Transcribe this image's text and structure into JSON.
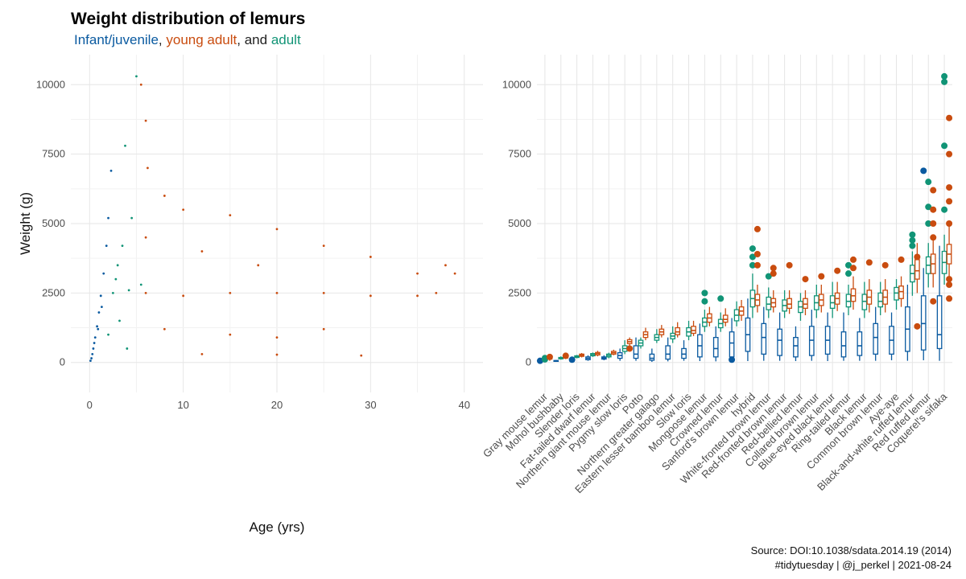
{
  "title": "Weight distribution of lemurs",
  "subtitle": {
    "part1": "Infant/juvenile",
    "sep1": ", ",
    "part2": "young adult",
    "sep2": ", and ",
    "part3": "adult"
  },
  "caption": {
    "line1": "Source: DOI:10.1038/sdata.2014.19 (2014)",
    "line2": "#tidytuesday | @j_perkel | 2021-08-24"
  },
  "colors": {
    "infant": "#0a5aa0",
    "young_adult": "#c94c0f",
    "adult": "#119476",
    "grid": "#e6e6e6"
  },
  "chart_data": [
    {
      "type": "scatter",
      "xlabel": "Age (yrs)",
      "ylabel": "Weight (g)",
      "xlim": [
        -2,
        42
      ],
      "ylim": [
        -500,
        10500
      ],
      "x_ticks": [
        0,
        10,
        20,
        30,
        40
      ],
      "y_ticks": [
        0,
        2500,
        5000,
        7500,
        10000
      ],
      "grid": true,
      "series": [
        {
          "name": "Infant/juvenile",
          "color_key": "infant",
          "points": [
            [
              0.1,
              60
            ],
            [
              0.2,
              150
            ],
            [
              0.3,
              300
            ],
            [
              0.4,
              500
            ],
            [
              0.5,
              700
            ],
            [
              0.6,
              900
            ],
            [
              0.8,
              1300
            ],
            [
              1,
              1800
            ],
            [
              1.2,
              2400
            ],
            [
              1.5,
              3200
            ],
            [
              1.8,
              4200
            ],
            [
              2,
              5200
            ],
            [
              2.3,
              6900
            ],
            [
              1.3,
              2000
            ],
            [
              0.9,
              1200
            ]
          ]
        },
        {
          "name": "adult",
          "color_key": "adult",
          "points": [
            [
              2,
              1000
            ],
            [
              2.5,
              2500
            ],
            [
              3,
              3500
            ],
            [
              3.5,
              4200
            ],
            [
              3.8,
              7800
            ],
            [
              4.5,
              5200
            ],
            [
              5,
              10300
            ],
            [
              4,
              500
            ],
            [
              2.8,
              3000
            ],
            [
              3.2,
              1500
            ],
            [
              4.2,
              2600
            ],
            [
              5.5,
              2800
            ]
          ]
        },
        {
          "name": "young adult",
          "color_key": "young_adult",
          "points": [
            [
              5.5,
              10000
            ],
            [
              6,
              8700
            ],
            [
              6.2,
              7000
            ],
            [
              8,
              6000
            ],
            [
              10,
              5500
            ],
            [
              15,
              5300
            ],
            [
              20,
              4800
            ],
            [
              25,
              4200
            ],
            [
              30,
              3800
            ],
            [
              35,
              3200
            ],
            [
              39,
              3200
            ],
            [
              38,
              3500
            ],
            [
              6,
              2500
            ],
            [
              10,
              2400
            ],
            [
              15,
              2500
            ],
            [
              20,
              2500
            ],
            [
              25,
              2500
            ],
            [
              30,
              2400
            ],
            [
              35,
              2400
            ],
            [
              37,
              2500
            ],
            [
              8,
              1200
            ],
            [
              15,
              1000
            ],
            [
              20,
              900
            ],
            [
              25,
              1200
            ],
            [
              29,
              250
            ],
            [
              12,
              300
            ],
            [
              20,
              280
            ],
            [
              6,
              4500
            ],
            [
              12,
              4000
            ],
            [
              18,
              3500
            ]
          ]
        }
      ]
    },
    {
      "type": "box",
      "ylim": [
        -500,
        10500
      ],
      "y_ticks": [
        0,
        2500,
        5000,
        7500,
        10000
      ],
      "grid": true,
      "group_order": [
        "infant",
        "adult",
        "young_adult"
      ],
      "categories": [
        "Gray mouse lemur",
        "Mohol bushbaby",
        "Slender loris",
        "Fat-tailed dwarf lemur",
        "Northern giant mouse lemur",
        "Pygmy slow loris",
        "Potto",
        "Northern greater galago",
        "Eastern lesser bamboo lemur",
        "Slow loris",
        "Mongoose lemur",
        "Crowned lemur",
        "Sanford's brown lemur",
        "hybrid",
        "White-fronted brown lemur",
        "Red-fronted brown lemur",
        "Red-bellied lemur",
        "Collared brown lemur",
        "Blue-eyed black lemur",
        "Ring-tailed lemur",
        "Black lemur",
        "Common brown lemur",
        "Aye-aye",
        "Black-and-white ruffed lemur",
        "Red ruffed lemur",
        "Coquerel's sifaka"
      ],
      "values": {
        "infant": [
          [
            10,
            40,
            60,
            80,
            120
          ],
          [
            20,
            40,
            60,
            70,
            90
          ],
          [
            30,
            50,
            80,
            100,
            130
          ],
          [
            60,
            100,
            150,
            200,
            260
          ],
          [
            80,
            120,
            160,
            200,
            260
          ],
          [
            60,
            150,
            250,
            350,
            500
          ],
          [
            60,
            150,
            300,
            600,
            900
          ],
          [
            20,
            80,
            150,
            300,
            500
          ],
          [
            40,
            120,
            300,
            600,
            900
          ],
          [
            60,
            150,
            300,
            500,
            800
          ],
          [
            50,
            200,
            600,
            1000,
            1400
          ],
          [
            40,
            200,
            500,
            900,
            1300
          ],
          [
            60,
            200,
            700,
            1100,
            1600
          ],
          [
            50,
            400,
            1000,
            1600,
            2300
          ],
          [
            60,
            300,
            900,
            1400,
            2000
          ],
          [
            60,
            250,
            800,
            1200,
            1800
          ],
          [
            50,
            200,
            600,
            900,
            1300
          ],
          [
            60,
            250,
            800,
            1300,
            1900
          ],
          [
            50,
            300,
            800,
            1300,
            1800
          ],
          [
            60,
            200,
            600,
            1100,
            1800
          ],
          [
            60,
            250,
            600,
            1100,
            1600
          ],
          [
            60,
            300,
            900,
            1400,
            2000
          ],
          [
            80,
            300,
            800,
            1300,
            1800
          ],
          [
            60,
            400,
            1200,
            2000,
            2800
          ],
          [
            80,
            450,
            1400,
            2400,
            3400
          ],
          [
            60,
            500,
            1000,
            2400,
            4200
          ]
        ],
        "adult": [
          [
            60,
            100,
            120,
            150,
            180
          ],
          [
            100,
            130,
            150,
            180,
            220
          ],
          [
            150,
            180,
            210,
            240,
            270
          ],
          [
            200,
            240,
            280,
            320,
            360
          ],
          [
            150,
            200,
            250,
            300,
            350
          ],
          [
            300,
            400,
            500,
            600,
            800
          ],
          [
            500,
            600,
            700,
            800,
            900
          ],
          [
            700,
            800,
            900,
            1000,
            1200
          ],
          [
            700,
            850,
            950,
            1050,
            1300
          ],
          [
            800,
            950,
            1100,
            1250,
            1500
          ],
          [
            1100,
            1300,
            1450,
            1600,
            1900
          ],
          [
            1100,
            1250,
            1400,
            1550,
            1800
          ],
          [
            1300,
            1500,
            1700,
            1900,
            2200
          ],
          [
            1600,
            2000,
            2300,
            2600,
            3200
          ],
          [
            1600,
            1900,
            2100,
            2350,
            2700
          ],
          [
            1600,
            1850,
            2050,
            2250,
            2600
          ],
          [
            1500,
            1800,
            2000,
            2200,
            2500
          ],
          [
            1600,
            1900,
            2150,
            2400,
            2800
          ],
          [
            1600,
            1950,
            2150,
            2400,
            2900
          ],
          [
            1700,
            2000,
            2200,
            2450,
            2800
          ],
          [
            1600,
            1900,
            2200,
            2450,
            2900
          ],
          [
            1700,
            2000,
            2200,
            2500,
            2900
          ],
          [
            1900,
            2250,
            2500,
            2700,
            3000
          ],
          [
            2400,
            2900,
            3200,
            3500,
            4000
          ],
          [
            2700,
            3200,
            3500,
            3800,
            4300
          ],
          [
            2800,
            3200,
            3600,
            4000,
            4600
          ]
        ],
        "young_adult": [
          [
            60,
            120,
            150,
            180,
            220
          ],
          [
            120,
            160,
            200,
            230,
            270
          ],
          [
            180,
            220,
            260,
            300,
            340
          ],
          [
            220,
            270,
            320,
            360,
            420
          ],
          [
            260,
            300,
            350,
            400,
            460
          ],
          [
            600,
            680,
            750,
            820,
            900
          ],
          [
            800,
            900,
            1000,
            1100,
            1250
          ],
          [
            900,
            1000,
            1100,
            1200,
            1350
          ],
          [
            900,
            1000,
            1100,
            1250,
            1450
          ],
          [
            950,
            1050,
            1150,
            1300,
            1500
          ],
          [
            1300,
            1450,
            1600,
            1750,
            2000
          ],
          [
            1300,
            1450,
            1550,
            1700,
            1950
          ],
          [
            1500,
            1700,
            1850,
            2000,
            2250
          ],
          [
            1800,
            2050,
            2250,
            2450,
            2800
          ],
          [
            1800,
            2000,
            2150,
            2300,
            2600
          ],
          [
            1750,
            1950,
            2100,
            2300,
            2600
          ],
          [
            1700,
            1950,
            2100,
            2300,
            2600
          ],
          [
            1800,
            2050,
            2250,
            2450,
            2800
          ],
          [
            1850,
            2100,
            2300,
            2500,
            2900
          ],
          [
            1900,
            2200,
            2400,
            2650,
            3100
          ],
          [
            1800,
            2100,
            2350,
            2600,
            3000
          ],
          [
            1800,
            2100,
            2350,
            2600,
            3000
          ],
          [
            2000,
            2300,
            2550,
            2750,
            3100
          ],
          [
            2500,
            3000,
            3300,
            3700,
            4300
          ],
          [
            2700,
            3200,
            3550,
            3900,
            4400
          ],
          [
            3000,
            3550,
            3900,
            4250,
            4900
          ]
        ]
      },
      "outliers": {
        "infant": [
          [
            0,
            60
          ],
          [
            2,
            100
          ],
          [
            12,
            100
          ],
          [
            24,
            6900
          ]
        ],
        "adult": [
          [
            0,
            110
          ],
          [
            0,
            160
          ],
          [
            10,
            2200
          ],
          [
            10,
            2500
          ],
          [
            11,
            2300
          ],
          [
            13,
            3500
          ],
          [
            13,
            3800
          ],
          [
            13,
            4100
          ],
          [
            14,
            3100
          ],
          [
            19,
            3200
          ],
          [
            19,
            3500
          ],
          [
            23,
            4200
          ],
          [
            23,
            4600
          ],
          [
            23,
            4400
          ],
          [
            24,
            5600
          ],
          [
            24,
            6500
          ],
          [
            24,
            5000
          ],
          [
            25,
            7800
          ],
          [
            25,
            10300
          ],
          [
            25,
            10100
          ],
          [
            25,
            5500
          ]
        ],
        "young_adult": [
          [
            0,
            200
          ],
          [
            1,
            240
          ],
          [
            5,
            500
          ],
          [
            13,
            4800
          ],
          [
            13,
            3900
          ],
          [
            13,
            3500
          ],
          [
            14,
            3200
          ],
          [
            14,
            3400
          ],
          [
            15,
            3500
          ],
          [
            16,
            3000
          ],
          [
            17,
            3100
          ],
          [
            18,
            3300
          ],
          [
            19,
            3400
          ],
          [
            19,
            3700
          ],
          [
            20,
            3600
          ],
          [
            21,
            3500
          ],
          [
            22,
            3700
          ],
          [
            23,
            3800
          ],
          [
            23,
            1300
          ],
          [
            24,
            5000
          ],
          [
            24,
            5500
          ],
          [
            24,
            6200
          ],
          [
            24,
            4500
          ],
          [
            24,
            2200
          ],
          [
            25,
            5800
          ],
          [
            25,
            6300
          ],
          [
            25,
            7500
          ],
          [
            25,
            8800
          ],
          [
            25,
            2300
          ],
          [
            25,
            2800
          ],
          [
            25,
            3000
          ],
          [
            25,
            5000
          ]
        ]
      }
    }
  ]
}
